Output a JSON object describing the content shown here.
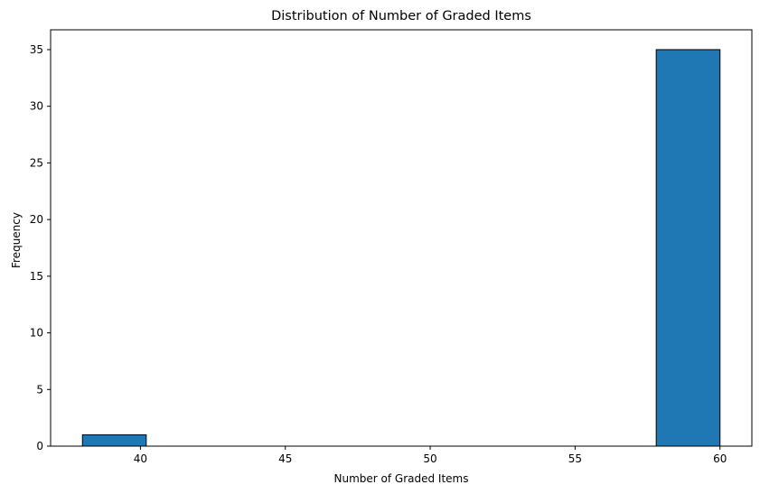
{
  "chart_data": {
    "type": "bar",
    "title": "Distribution of Number of Graded Items",
    "xlabel": "Number of Graded Items",
    "ylabel": "Frequency",
    "xlim": [
      36.9,
      61.1
    ],
    "ylim": [
      0,
      36.75
    ],
    "xticks": [
      40,
      45,
      50,
      55,
      60
    ],
    "yticks": [
      0,
      5,
      10,
      15,
      20,
      25,
      30,
      35
    ],
    "bins": [
      {
        "x0": 38,
        "x1": 40.2,
        "count": 1
      },
      {
        "x0": 40.2,
        "x1": 42.4,
        "count": 0
      },
      {
        "x0": 42.4,
        "x1": 44.6,
        "count": 0
      },
      {
        "x0": 44.6,
        "x1": 46.8,
        "count": 0
      },
      {
        "x0": 46.8,
        "x1": 49.0,
        "count": 0
      },
      {
        "x0": 49.0,
        "x1": 51.2,
        "count": 0
      },
      {
        "x0": 51.2,
        "x1": 53.4,
        "count": 0
      },
      {
        "x0": 53.4,
        "x1": 55.6,
        "count": 0
      },
      {
        "x0": 55.6,
        "x1": 57.8,
        "count": 0
      },
      {
        "x0": 57.8,
        "x1": 60,
        "count": 35
      }
    ],
    "bar_color": "#1f77b4",
    "edge_color": "#000000",
    "grid": false
  }
}
